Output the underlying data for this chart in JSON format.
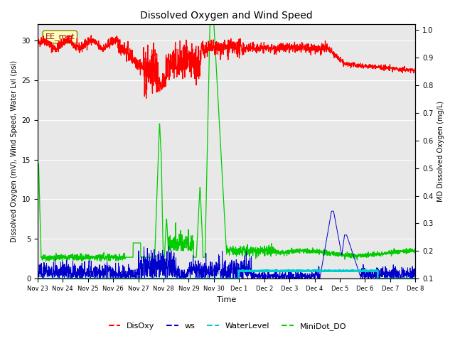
{
  "title": "Dissolved Oxygen and Wind Speed",
  "xlabel": "Time",
  "ylabel_left": "Dissolved Oxygen (mV), Wind Speed, Water Lvl (psi)",
  "ylabel_right": "MD Dissolved Oxygen (mg/L)",
  "ylim_left": [
    0,
    32
  ],
  "ylim_right": [
    0.1,
    1.02
  ],
  "yticks_left": [
    0,
    5,
    10,
    15,
    20,
    25,
    30
  ],
  "yticks_right": [
    0.1,
    0.2,
    0.3,
    0.4,
    0.5,
    0.6,
    0.7,
    0.8,
    0.9,
    1.0
  ],
  "xtick_labels": [
    "Nov 23",
    "Nov 24",
    "Nov 25",
    "Nov 26",
    "Nov 27",
    "Nov 28",
    "Nov 29",
    "Nov 30",
    "Dec 1",
    "Dec 2",
    "Dec 3",
    "Dec 4",
    "Dec 5",
    "Dec 6",
    "Dec 7",
    "Dec 8"
  ],
  "annotation_text": "EE_met",
  "bg_color": "#e8e8e8",
  "colors": {
    "DisOxy": "#ff0000",
    "ws": "#0000cc",
    "WaterLevel": "#00cccc",
    "MiniDot_DO": "#00cc00"
  },
  "legend_labels": [
    "DisOxy",
    "ws",
    "WaterLevel",
    "MiniDot_DO"
  ]
}
